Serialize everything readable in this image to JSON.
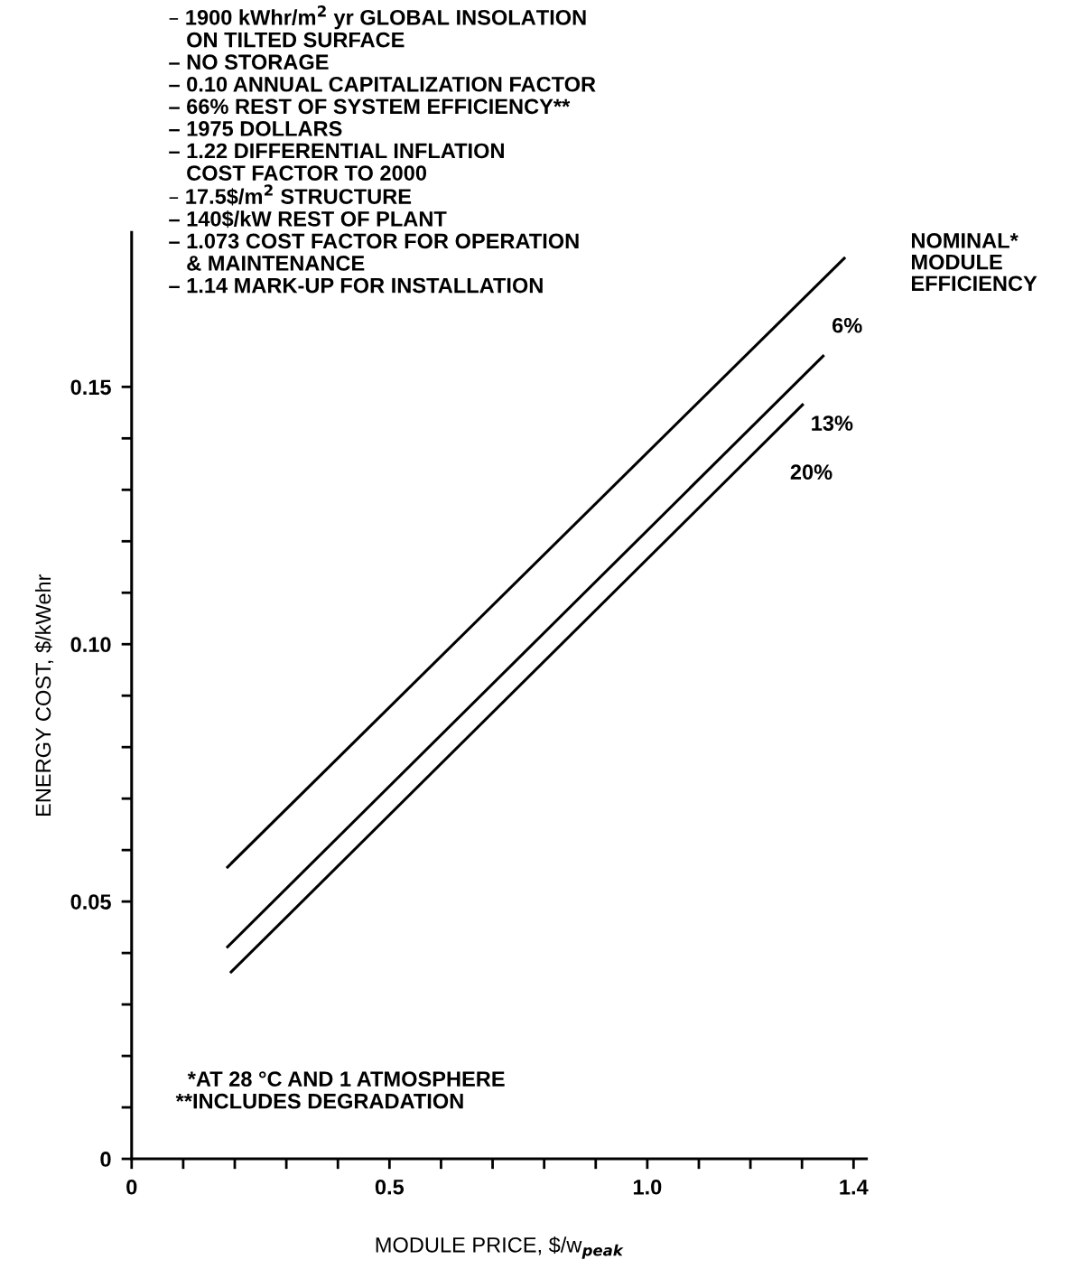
{
  "chart_data": {
    "type": "line",
    "xlabel": "MODULE PRICE, $/w$_{peak}$",
    "ylabel": "ENERGY COST, $/kWehr",
    "legend_title": "NOMINAL*\nMODULE\nEFFICIENCY",
    "series": [
      {
        "name": "6%",
        "color": "#000000",
        "x": [
          0.186,
          1.382
        ],
        "values": [
          0.0567,
          0.175
        ]
      },
      {
        "name": "13%",
        "color": "#000000",
        "x": [
          0.186,
          1.341
        ],
        "values": [
          0.0412,
          0.156
        ]
      },
      {
        "name": "20%",
        "color": "#000000",
        "x": [
          0.193,
          1.301
        ],
        "values": [
          0.0363,
          0.1465
        ]
      }
    ],
    "xlim": [
      0,
      1.425
    ],
    "ylim": [
      0,
      0.18
    ],
    "xticks": [
      0,
      {
        "value": 0.1,
        "label": null
      },
      {
        "value": 0.2,
        "label": null
      },
      {
        "value": 0.3,
        "label": null
      },
      {
        "value": 0.4,
        "label": null
      },
      0.5,
      {
        "value": 0.6,
        "label": null
      },
      {
        "value": 0.7,
        "label": null
      },
      {
        "value": 0.8,
        "label": null
      },
      {
        "value": 0.9,
        "label": null
      },
      {
        "value": 1.0,
        "label": "1.0"
      },
      {
        "value": 1.1,
        "label": null
      },
      {
        "value": 1.2,
        "label": null
      },
      {
        "value": 1.3,
        "label": null
      },
      1.4
    ],
    "yticks": [
      0,
      {
        "value": 0.01,
        "label": null
      },
      {
        "value": 0.02,
        "label": null
      },
      {
        "value": 0.03,
        "label": null
      },
      {
        "value": 0.04,
        "label": null
      },
      0.05,
      {
        "value": 0.06,
        "label": null
      },
      {
        "value": 0.07,
        "label": null
      },
      {
        "value": 0.08,
        "label": null
      },
      {
        "value": 0.09,
        "label": null
      },
      {
        "value": 0.1,
        "label": "0.10"
      },
      {
        "value": 0.11,
        "label": null
      },
      {
        "value": 0.12,
        "label": null
      },
      {
        "value": 0.13,
        "label": null
      },
      {
        "value": 0.14,
        "label": null
      },
      0.15
    ],
    "grid": false,
    "legend": "right",
    "line_style": "solid",
    "marker": "none",
    "annotations": [
      "– 1900 kWhr/m$^{2}$ yr GLOBAL INSOLATION\n   ON TILTED SURFACE\n– NO STORAGE\n– 0.10 ANNUAL CAPITALIZATION FACTOR\n– 66% REST OF SYSTEM EFFICIENCY**\n– 1975 DOLLARS\n– 1.22 DIFFERENTIAL INFLATION\n   COST FACTOR TO 2000\n– 17.5$/m$^{2}$ STRUCTURE\n– 140$/kW REST OF PLANT\n– 1.073 COST FACTOR FOR OPERATION\n   & MAINTENANCE\n– 1.14 MARK-UP FOR INSTALLATION",
      "  *AT 28 °C AND 1 ATMOSPHERE\n**INCLUDES DEGRADATION"
    ]
  }
}
